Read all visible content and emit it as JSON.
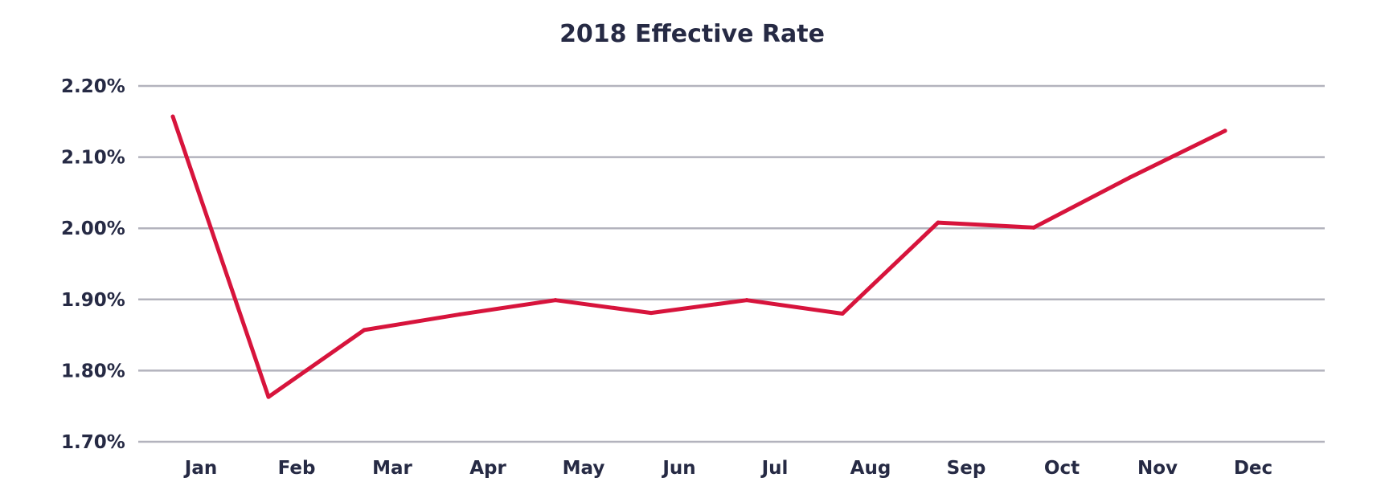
{
  "chart_data": {
    "type": "line",
    "title": "2018 Effective Rate",
    "xlabel": "",
    "ylabel": "",
    "categories": [
      "Jan",
      "Feb",
      "Mar",
      "Apr",
      "May",
      "Jun",
      "Jul",
      "Aug",
      "Sep",
      "Oct",
      "Nov",
      "Dec"
    ],
    "series": [
      {
        "values": [
          2.157,
          1.763,
          1.857,
          1.879,
          1.899,
          1.881,
          1.899,
          1.88,
          2.008,
          2.001,
          2.071,
          2.137
        ],
        "color": "#d7143c"
      }
    ],
    "ylim": [
      1.7,
      2.2
    ],
    "y_ticks": [
      1.7,
      1.8,
      1.9,
      2.0,
      2.1,
      2.2
    ],
    "y_tick_labels": [
      "1.70%",
      "1.80%",
      "1.90%",
      "2.00%",
      "2.10%",
      "2.20%"
    ],
    "y_unit": "%",
    "grid": true,
    "legend": "none"
  }
}
